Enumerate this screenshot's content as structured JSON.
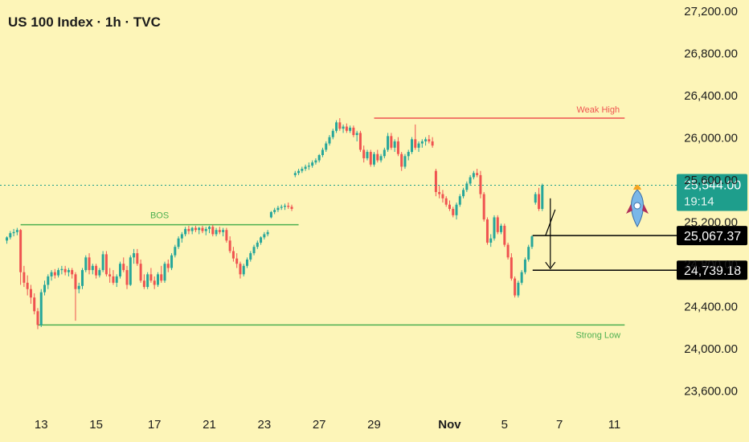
{
  "header": {
    "title": "US 100 Index · 1h · TVC"
  },
  "colors": {
    "background": "#fdf5b8",
    "up": "#26a69a",
    "down": "#ef5350",
    "level_green": "#4caf50",
    "level_red": "#ef5350",
    "price_tag": "#1e9e8c",
    "marker_tag": "#000000",
    "text": "#1c1c1c"
  },
  "chart_data": {
    "type": "candlestick",
    "ylim": [
      23400,
      27300
    ],
    "y_ticks": [
      {
        "value": 27200,
        "label": "27,200.00"
      },
      {
        "value": 26800,
        "label": "26,800.00"
      },
      {
        "value": 26400,
        "label": "26,400.00"
      },
      {
        "value": 26000,
        "label": "26,000.00"
      },
      {
        "value": 25600,
        "label": "25,600.00"
      },
      {
        "value": 25200,
        "label": "25,200.00"
      },
      {
        "value": 24800,
        "label": "24,800.00"
      },
      {
        "value": 24400,
        "label": "24,400.00"
      },
      {
        "value": 24000,
        "label": "24,000.00"
      },
      {
        "value": 23600,
        "label": "23,600.00"
      }
    ],
    "x_ticks": [
      {
        "index": 10,
        "label": "13",
        "bold": false
      },
      {
        "index": 26,
        "label": "15",
        "bold": false
      },
      {
        "index": 43,
        "label": "17",
        "bold": false
      },
      {
        "index": 59,
        "label": "21",
        "bold": false
      },
      {
        "index": 75,
        "label": "23",
        "bold": false
      },
      {
        "index": 91,
        "label": "27",
        "bold": false
      },
      {
        "index": 107,
        "label": "29",
        "bold": false
      },
      {
        "index": 129,
        "label": "Nov",
        "bold": true
      },
      {
        "index": 145,
        "label": "5",
        "bold": false
      },
      {
        "index": 161,
        "label": "7",
        "bold": false
      },
      {
        "index": 177,
        "label": "11",
        "bold": false
      }
    ],
    "x_range": [
      -2,
      190
    ],
    "candles": [
      [
        25020,
        25060,
        24990,
        25050
      ],
      [
        25050,
        25110,
        25030,
        25090
      ],
      [
        25090,
        25130,
        25060,
        25100
      ],
      [
        25100,
        25140,
        25070,
        25120
      ],
      [
        25120,
        25130,
        24600,
        24720
      ],
      [
        24720,
        24780,
        24580,
        24620
      ],
      [
        24620,
        24690,
        24500,
        24560
      ],
      [
        24560,
        24600,
        24420,
        24480
      ],
      [
        24480,
        24520,
        24320,
        24350
      ],
      [
        24350,
        24380,
        24180,
        24220
      ],
      [
        24220,
        24560,
        24200,
        24530
      ],
      [
        24530,
        24640,
        24500,
        24600
      ],
      [
        24600,
        24700,
        24560,
        24680
      ],
      [
        24680,
        24740,
        24640,
        24720
      ],
      [
        24720,
        24750,
        24660,
        24690
      ],
      [
        24690,
        24760,
        24670,
        24740
      ],
      [
        24740,
        24780,
        24700,
        24750
      ],
      [
        24750,
        24780,
        24690,
        24720
      ],
      [
        24720,
        24760,
        24680,
        24740
      ],
      [
        24740,
        24760,
        24660,
        24700
      ],
      [
        24700,
        24720,
        24260,
        24560
      ],
      [
        24560,
        24620,
        24520,
        24590
      ],
      [
        24590,
        24760,
        24560,
        24740
      ],
      [
        24740,
        24880,
        24720,
        24860
      ],
      [
        24860,
        24900,
        24700,
        24740
      ],
      [
        24740,
        24800,
        24700,
        24780
      ],
      [
        24780,
        24800,
        24660,
        24690
      ],
      [
        24690,
        24760,
        24670,
        24740
      ],
      [
        24740,
        24920,
        24720,
        24890
      ],
      [
        24890,
        24920,
        24680,
        24700
      ],
      [
        24700,
        24760,
        24620,
        24680
      ],
      [
        24680,
        24740,
        24600,
        24620
      ],
      [
        24620,
        24700,
        24580,
        24680
      ],
      [
        24680,
        24820,
        24660,
        24800
      ],
      [
        24800,
        24860,
        24720,
        24740
      ],
      [
        24740,
        24780,
        24560,
        24600
      ],
      [
        24600,
        24880,
        24590,
        24860
      ],
      [
        24860,
        24940,
        24800,
        24900
      ],
      [
        24900,
        24940,
        24780,
        24800
      ],
      [
        24800,
        24840,
        24620,
        24640
      ],
      [
        24640,
        24700,
        24560,
        24580
      ],
      [
        24580,
        24720,
        24560,
        24700
      ],
      [
        24700,
        24760,
        24620,
        24640
      ],
      [
        24640,
        24680,
        24560,
        24600
      ],
      [
        24600,
        24720,
        24580,
        24700
      ],
      [
        24700,
        24780,
        24620,
        24640
      ],
      [
        24640,
        24820,
        24620,
        24800
      ],
      [
        24800,
        24840,
        24720,
        24760
      ],
      [
        24760,
        24900,
        24740,
        24880
      ],
      [
        24880,
        24980,
        24860,
        24960
      ],
      [
        24960,
        25060,
        24940,
        25040
      ],
      [
        25040,
        25100,
        25000,
        25080
      ],
      [
        25080,
        25150,
        25060,
        25130
      ],
      [
        25130,
        25160,
        25080,
        25110
      ],
      [
        25110,
        25150,
        25080,
        25140
      ],
      [
        25140,
        25160,
        25100,
        25120
      ],
      [
        25120,
        25150,
        25080,
        25140
      ],
      [
        25140,
        25160,
        25090,
        25110
      ],
      [
        25110,
        25150,
        25070,
        25130
      ],
      [
        25130,
        25160,
        25090,
        25150
      ],
      [
        25150,
        25170,
        25060,
        25080
      ],
      [
        25080,
        25140,
        25060,
        25120
      ],
      [
        25120,
        25150,
        25080,
        25100
      ],
      [
        25100,
        25140,
        25060,
        25120
      ],
      [
        25120,
        25140,
        25000,
        25020
      ],
      [
        25020,
        25060,
        24900,
        24920
      ],
      [
        24920,
        24960,
        24820,
        24850
      ],
      [
        24850,
        24900,
        24760,
        24800
      ],
      [
        24800,
        24820,
        24660,
        24700
      ],
      [
        24700,
        24800,
        24680,
        24780
      ],
      [
        24780,
        24860,
        24760,
        24840
      ],
      [
        24840,
        24920,
        24820,
        24900
      ],
      [
        24900,
        24980,
        24880,
        24960
      ],
      [
        24960,
        25020,
        24940,
        25000
      ],
      [
        25000,
        25060,
        24980,
        25050
      ],
      [
        25050,
        25100,
        25030,
        25080
      ],
      [
        25080,
        25120,
        25060,
        25100
      ],
      [
        25240,
        25300,
        25230,
        25290
      ],
      [
        25290,
        25330,
        25270,
        25310
      ],
      [
        25310,
        25350,
        25290,
        25330
      ],
      [
        25330,
        25360,
        25310,
        25340
      ],
      [
        25340,
        25370,
        25310,
        25350
      ],
      [
        25350,
        25380,
        25320,
        25340
      ],
      [
        25340,
        25360,
        25300,
        25320
      ],
      [
        25640,
        25680,
        25620,
        25660
      ],
      [
        25660,
        25700,
        25640,
        25680
      ],
      [
        25680,
        25720,
        25660,
        25700
      ],
      [
        25700,
        25740,
        25680,
        25720
      ],
      [
        25720,
        25760,
        25690,
        25730
      ],
      [
        25730,
        25780,
        25710,
        25760
      ],
      [
        25760,
        25800,
        25740,
        25780
      ],
      [
        25780,
        25840,
        25760,
        25830
      ],
      [
        25830,
        25900,
        25810,
        25880
      ],
      [
        25880,
        25960,
        25860,
        25940
      ],
      [
        25940,
        26020,
        25920,
        26000
      ],
      [
        26000,
        26080,
        25980,
        26060
      ],
      [
        26060,
        26160,
        26040,
        26140
      ],
      [
        26140,
        26180,
        26060,
        26080
      ],
      [
        26080,
        26120,
        26040,
        26100
      ],
      [
        26100,
        26130,
        26040,
        26060
      ],
      [
        26060,
        26110,
        26040,
        26090
      ],
      [
        26090,
        26110,
        26000,
        26020
      ],
      [
        26020,
        26060,
        25960,
        26040
      ],
      [
        26040,
        26060,
        25860,
        25880
      ],
      [
        25880,
        25920,
        25760,
        25800
      ],
      [
        25800,
        25880,
        25780,
        25860
      ],
      [
        25860,
        25880,
        25720,
        25740
      ],
      [
        25740,
        25860,
        25720,
        25840
      ],
      [
        25840,
        25880,
        25760,
        25780
      ],
      [
        25780,
        25840,
        25760,
        25820
      ],
      [
        25820,
        25900,
        25800,
        25880
      ],
      [
        25880,
        26040,
        25860,
        26010
      ],
      [
        26010,
        26040,
        25880,
        25900
      ],
      [
        25900,
        25980,
        25860,
        25960
      ],
      [
        25960,
        26000,
        25820,
        25840
      ],
      [
        25840,
        25860,
        25680,
        25720
      ],
      [
        25720,
        25840,
        25700,
        25820
      ],
      [
        25820,
        25880,
        25780,
        25860
      ],
      [
        25860,
        26000,
        25840,
        25980
      ],
      [
        25980,
        26120,
        25880,
        25900
      ],
      [
        25900,
        25960,
        25860,
        25940
      ],
      [
        25940,
        25980,
        25900,
        25960
      ],
      [
        25960,
        26000,
        25920,
        25980
      ],
      [
        25980,
        26020,
        25940,
        25960
      ],
      [
        25960,
        26000,
        25900,
        25920
      ],
      [
        25680,
        25700,
        25440,
        25480
      ],
      [
        25480,
        25540,
        25420,
        25460
      ],
      [
        25460,
        25500,
        25380,
        25420
      ],
      [
        25420,
        25440,
        25340,
        25360
      ],
      [
        25360,
        25400,
        25300,
        25320
      ],
      [
        25320,
        25340,
        25240,
        25260
      ],
      [
        25260,
        25380,
        25220,
        25360
      ],
      [
        25360,
        25460,
        25340,
        25440
      ],
      [
        25440,
        25520,
        25420,
        25500
      ],
      [
        25500,
        25580,
        25480,
        25560
      ],
      [
        25560,
        25640,
        25540,
        25620
      ],
      [
        25620,
        25680,
        25600,
        25660
      ],
      [
        25660,
        25700,
        25620,
        25640
      ],
      [
        25640,
        25680,
        25420,
        25460
      ],
      [
        25460,
        25480,
        25200,
        25220
      ],
      [
        25220,
        25240,
        24980,
        25000
      ],
      [
        25000,
        25080,
        24960,
        25040
      ],
      [
        25040,
        25260,
        25020,
        25240
      ],
      [
        25240,
        25260,
        25080,
        25100
      ],
      [
        25100,
        25180,
        25080,
        25160
      ],
      [
        25160,
        25180,
        24960,
        24980
      ],
      [
        24980,
        25000,
        24840,
        24860
      ],
      [
        24860,
        24900,
        24640,
        24660
      ],
      [
        24660,
        24680,
        24480,
        24500
      ],
      [
        24500,
        24640,
        24480,
        24620
      ],
      [
        24620,
        24740,
        24600,
        24720
      ],
      [
        24720,
        24860,
        24700,
        24840
      ],
      [
        24840,
        24980,
        24820,
        24960
      ],
      [
        24960,
        25070,
        24940,
        25060
      ],
      [
        25380,
        25480,
        25360,
        25460
      ],
      [
        25460,
        25520,
        25300,
        25320
      ],
      [
        25320,
        25560,
        25300,
        25544
      ]
    ],
    "levels": [
      {
        "label": "BOS",
        "value": 25170,
        "from_index": 4,
        "to_index": 85,
        "color": "green",
        "label_pos": "center"
      },
      {
        "label": "Weak High",
        "value": 26180,
        "from_index": 107,
        "to_index": 180,
        "color": "red",
        "label_pos": "right"
      },
      {
        "label": "Strong Low",
        "value": 24220,
        "from_index": 9,
        "to_index": 180,
        "color": "green",
        "label_pos": "right"
      }
    ],
    "current_price": {
      "value": 25544,
      "label": "25,544.00",
      "countdown": "19:14"
    },
    "target_levels": [
      {
        "value": 25067.37,
        "label": "25,067.37"
      },
      {
        "value": 24739.18,
        "label": "24,739.18"
      }
    ]
  }
}
